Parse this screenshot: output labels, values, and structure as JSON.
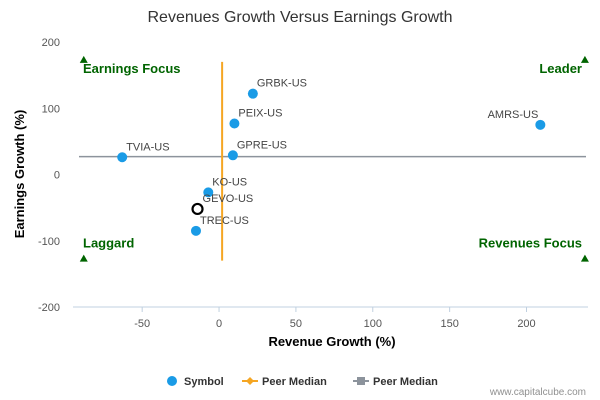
{
  "chart_data": {
    "type": "scatter",
    "title": "Revenues Growth Versus Earnings Growth",
    "xlabel": "Revenue Growth (%)",
    "ylabel": "Earnings Growth (%)",
    "xlim": [
      -95,
      240
    ],
    "ylim": [
      -200,
      200
    ],
    "x_ticks": [
      -50,
      0,
      50,
      100,
      150,
      200
    ],
    "y_ticks": [
      -200,
      -100,
      0,
      100,
      200
    ],
    "grid": false,
    "points": [
      {
        "label": "GRBK-US",
        "x": 22,
        "y": 122
      },
      {
        "label": "PEIX-US",
        "x": 10,
        "y": 77
      },
      {
        "label": "AMRS-US",
        "x": 209,
        "y": 75
      },
      {
        "label": "GPRE-US",
        "x": 9,
        "y": 29
      },
      {
        "label": "TVIA-US",
        "x": -63,
        "y": 26
      },
      {
        "label": "KO-US",
        "x": -7,
        "y": -27
      },
      {
        "label": "TREC-US",
        "x": -15,
        "y": -85
      }
    ],
    "highlight": {
      "label": "GEVO-US",
      "x": -14,
      "y": -52
    },
    "peer_median_x": 2,
    "peer_median_y": 27,
    "quadrants": [
      {
        "label": "Earnings Focus",
        "position": "top-left"
      },
      {
        "label": "Leader",
        "position": "top-right"
      },
      {
        "label": "Laggard",
        "position": "bottom-left"
      },
      {
        "label": "Revenues Focus",
        "position": "bottom-right"
      }
    ],
    "legend": {
      "position": "bottom-center",
      "items": [
        {
          "name": "Symbol",
          "color": "#1a9be6",
          "marker": "circle"
        },
        {
          "name": "Peer Median",
          "color": "#f5a623",
          "marker": "diamond-line"
        },
        {
          "name": "Peer Median",
          "color": "#8c939c",
          "marker": "square-line"
        }
      ]
    }
  },
  "colors": {
    "point": "#1a9be6",
    "median_vertical": "#f5a623",
    "median_horizontal": "#8c939c",
    "quadrant_text": "#006400",
    "triangle": "#006400"
  },
  "credit": "www.capitalcube.com"
}
